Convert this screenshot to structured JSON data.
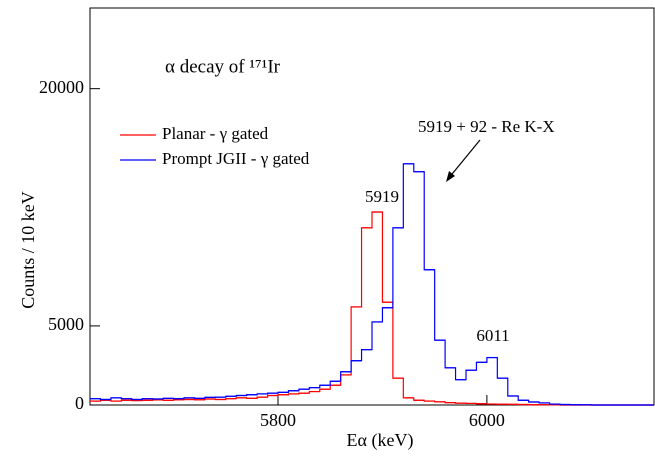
{
  "chart_data": {
    "type": "histogram",
    "title": "α decay of ¹⁷¹Ir",
    "xlabel": "Eα (keV)",
    "ylabel": "Counts / 10 keV",
    "annotations": [
      "5919",
      "5919 + 92 - Re K-X",
      "6011"
    ],
    "legend": "upper left",
    "bins": [
      5620,
      5630,
      5640,
      5650,
      5660,
      5670,
      5680,
      5690,
      5700,
      5710,
      5720,
      5730,
      5740,
      5750,
      5760,
      5770,
      5780,
      5790,
      5800,
      5810,
      5820,
      5830,
      5840,
      5850,
      5860,
      5870,
      5880,
      5890,
      5900,
      5910,
      5920,
      5930,
      5940,
      5950,
      5960,
      5970,
      5980,
      5990,
      6000,
      6010,
      6020,
      6030,
      6040,
      6050,
      6060,
      6070,
      6080,
      6090,
      6100,
      6110,
      6120,
      6130,
      6140,
      6150,
      6160
    ],
    "series": [
      {
        "name": "Planar - γ gated",
        "color": "#ff0000",
        "values": [
          250,
          300,
          250,
          300,
          280,
          300,
          320,
          300,
          330,
          350,
          330,
          380,
          350,
          400,
          450,
          420,
          500,
          600,
          650,
          700,
          750,
          850,
          1000,
          1250,
          1900,
          6200,
          11200,
          12200,
          6500,
          1700,
          450,
          300,
          250,
          200,
          150,
          120,
          100,
          80,
          60,
          50,
          40,
          30,
          20,
          20,
          10,
          0,
          0,
          0,
          0,
          0,
          0,
          0,
          0,
          0
        ]
      },
      {
        "name": "Prompt JGII - γ gated",
        "color": "#0000ff",
        "values": [
          400,
          350,
          450,
          400,
          350,
          400,
          380,
          420,
          400,
          450,
          420,
          480,
          500,
          550,
          600,
          650,
          700,
          750,
          800,
          900,
          1000,
          1100,
          1250,
          1500,
          2100,
          2800,
          3500,
          5250,
          6150,
          11200,
          15250,
          14750,
          8550,
          4100,
          2350,
          1600,
          2200,
          2700,
          3000,
          1700,
          570,
          300,
          190,
          130,
          60,
          30,
          20,
          10,
          0,
          0,
          0,
          0,
          0,
          0
        ]
      }
    ],
    "xlim": [
      5620,
      6160
    ],
    "xticks": [
      5800,
      6000
    ],
    "ylim": [
      0,
      25100
    ],
    "yticks": [
      0,
      5000,
      20000
    ]
  }
}
